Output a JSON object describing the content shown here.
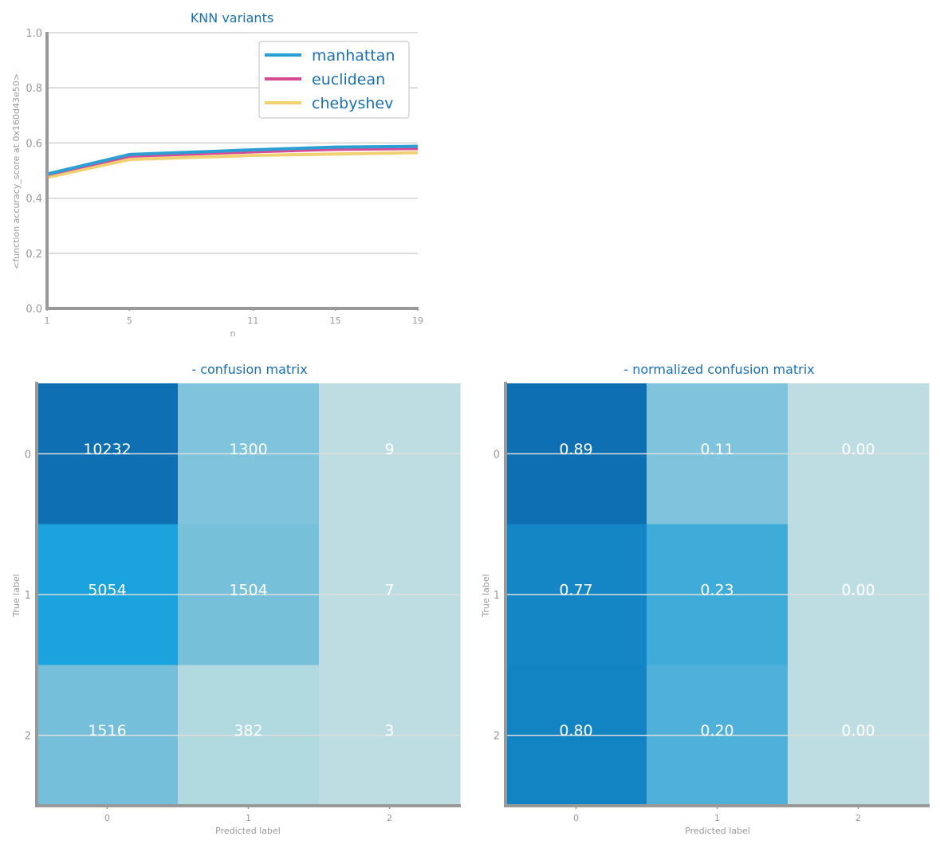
{
  "chart_data": [
    {
      "type": "line",
      "title": "KNN variants",
      "xlabel": "n",
      "ylabel": "<function accuracy_score at 0x160d43e50>",
      "x": [
        1,
        5,
        11,
        15,
        19
      ],
      "xticks": [
        "1",
        "5",
        "11",
        "15",
        "19"
      ],
      "xlim": [
        1,
        19
      ],
      "ylim": [
        0.0,
        1.0
      ],
      "yticks": [
        "0.0",
        "0.2",
        "0.4",
        "0.6",
        "0.8",
        "1.0"
      ],
      "grid": true,
      "legend_position": "top-right",
      "series": [
        {
          "name": "manhattan",
          "color": "#2b9fd4",
          "values": [
            0.487,
            0.558,
            0.575,
            0.585,
            0.588
          ]
        },
        {
          "name": "euclidean",
          "color": "#d94a96",
          "values": [
            0.485,
            0.552,
            0.568,
            0.577,
            0.58
          ]
        },
        {
          "name": "chebyshev",
          "color": "#f0d070",
          "values": [
            0.475,
            0.54,
            0.555,
            0.56,
            0.565
          ]
        }
      ]
    },
    {
      "type": "heatmap",
      "title": "- confusion matrix",
      "xlabel": "Predicted label",
      "ylabel": "True label",
      "x_categories": [
        "0",
        "1",
        "2"
      ],
      "y_categories": [
        "0",
        "1",
        "2"
      ],
      "values": [
        [
          10232,
          1300,
          9
        ],
        [
          5054,
          1504,
          7
        ],
        [
          1516,
          382,
          3
        ]
      ],
      "labels": [
        [
          "10232",
          "1300",
          "9"
        ],
        [
          "5054",
          "1504",
          "7"
        ],
        [
          "1516",
          "382",
          "3"
        ]
      ],
      "colors": [
        [
          "#0e70b3",
          "#7fc4dc",
          "#bedde2"
        ],
        [
          "#1aa3dd",
          "#76c0da",
          "#bedde2"
        ],
        [
          "#75bfdb",
          "#b0d9e0",
          "#bedde2"
        ]
      ]
    },
    {
      "type": "heatmap",
      "title": "- normalized confusion matrix",
      "xlabel": "Predicted label",
      "ylabel": "True label",
      "x_categories": [
        "0",
        "1",
        "2"
      ],
      "y_categories": [
        "0",
        "1",
        "2"
      ],
      "values": [
        [
          0.89,
          0.11,
          0.0
        ],
        [
          0.77,
          0.23,
          0.0
        ],
        [
          0.8,
          0.2,
          0.0
        ]
      ],
      "labels": [
        [
          "0.89",
          "0.11",
          "0.00"
        ],
        [
          "0.77",
          "0.23",
          "0.00"
        ],
        [
          "0.80",
          "0.20",
          "0.00"
        ]
      ],
      "colors": [
        [
          "#0e70b3",
          "#7fc4dc",
          "#bedde2"
        ],
        [
          "#1586c5",
          "#3eabd9",
          "#bedde2"
        ],
        [
          "#1283c3",
          "#4fb1da",
          "#bedde2"
        ]
      ]
    }
  ]
}
